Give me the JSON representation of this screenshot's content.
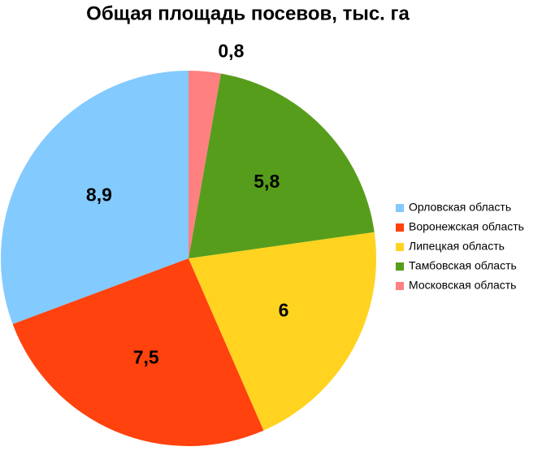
{
  "chart_data": {
    "type": "pie",
    "title": "Общая площадь посевов, тыс. га",
    "categories": [
      "Орловская область",
      "Воронежская область",
      "Липецкая область",
      "Тамбовская область",
      "Московская область"
    ],
    "values": [
      8.9,
      7.5,
      6,
      5.8,
      0.8
    ],
    "value_labels": [
      "8,9",
      "7,5",
      "6",
      "5,8",
      "0,8"
    ],
    "colors": [
      "#83caff",
      "#ff420e",
      "#ffd320",
      "#579d1c",
      "#ff8080"
    ],
    "legend": "right"
  }
}
